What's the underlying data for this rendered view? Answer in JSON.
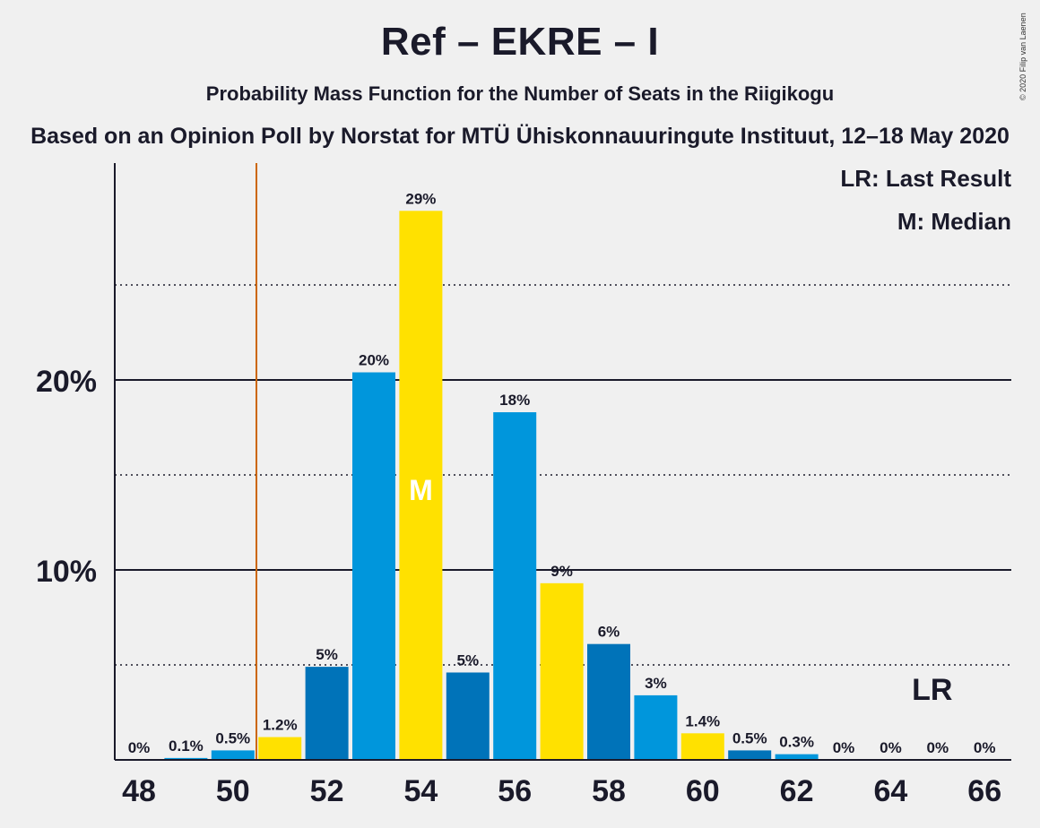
{
  "header": {
    "title": "Ref – EKRE – I",
    "subtitle": "Probability Mass Function for the Number of Seats in the Riigikogu",
    "subtitle2": "Based on an Opinion Poll by Norstat for MTÜ Ühiskonnauuringute Instituut, 12–18 May 2020",
    "copyright": "© 2020 Filip van Laenen"
  },
  "legend": {
    "last_result": "LR: Last Result",
    "median": "M: Median"
  },
  "markers": {
    "median_letter": "M",
    "median_seat": 54,
    "last_result_label": "LR",
    "last_result_seat": 65,
    "threshold_line_after_seat": 50
  },
  "colors": {
    "blue": "#0096dc",
    "dark_blue": "#0073b9",
    "yellow": "#ffe100",
    "threshold_line": "#cc6600",
    "background": "#f0f0f0",
    "text": "#1a1a2a"
  },
  "chart_data": {
    "type": "bar",
    "x": [
      48,
      49,
      50,
      51,
      52,
      53,
      54,
      55,
      56,
      57,
      58,
      59,
      60,
      61,
      62,
      63,
      64,
      65,
      66
    ],
    "values": [
      0,
      0.1,
      0.5,
      1.2,
      4.9,
      20.4,
      28.9,
      4.6,
      18.3,
      9.3,
      6.1,
      3.4,
      1.4,
      0.5,
      0.3,
      0,
      0,
      0,
      0
    ],
    "labels": [
      "0%",
      "0.1%",
      "0.5%",
      "1.2%",
      "5%",
      "20%",
      "29%",
      "5%",
      "18%",
      "9%",
      "6%",
      "3%",
      "1.4%",
      "0.5%",
      "0.3%",
      "0%",
      "0%",
      "0%",
      "0%"
    ],
    "bar_colors": [
      "blue",
      "blue",
      "blue",
      "yellow",
      "dark_blue",
      "blue",
      "yellow",
      "dark_blue",
      "blue",
      "yellow",
      "dark_blue",
      "blue",
      "yellow",
      "dark_blue",
      "blue",
      "blue",
      "blue",
      "blue",
      "blue"
    ],
    "x_ticks": [
      48,
      50,
      52,
      54,
      56,
      58,
      60,
      62,
      64,
      66
    ],
    "y_ticks": [
      {
        "value": 10,
        "label": "10%",
        "style": "solid"
      },
      {
        "value": 20,
        "label": "20%",
        "style": "solid"
      }
    ],
    "y_minor_gridlines": [
      5,
      15,
      25
    ],
    "ylim": [
      0,
      31.5
    ],
    "xlabel": "",
    "ylabel": ""
  }
}
